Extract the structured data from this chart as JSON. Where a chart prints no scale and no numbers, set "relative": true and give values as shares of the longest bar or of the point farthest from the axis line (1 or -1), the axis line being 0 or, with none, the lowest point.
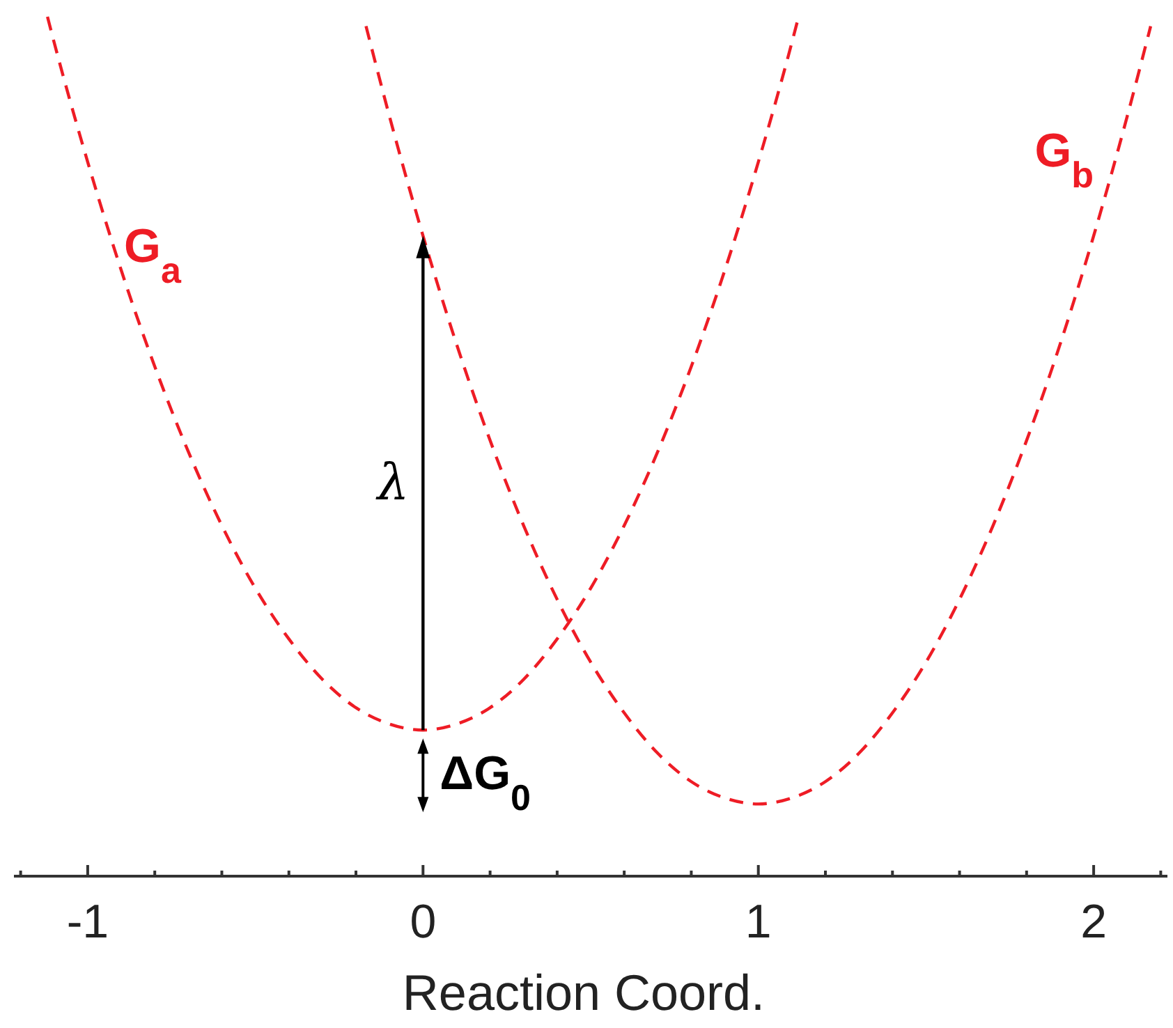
{
  "chart_data": {
    "type": "line",
    "relative": true,
    "xlabel": "Reaction Coord.",
    "xlim": [
      -1.22,
      2.22
    ],
    "xticks": [
      {
        "value": -1.2,
        "label": null
      },
      -1,
      {
        "value": -0.8,
        "label": null
      },
      {
        "value": -0.6,
        "label": null
      },
      {
        "value": -0.4,
        "label": null
      },
      {
        "value": -0.2,
        "label": null
      },
      0,
      {
        "value": 0.2,
        "label": null
      },
      {
        "value": 0.4,
        "label": null
      },
      {
        "value": 0.6,
        "label": null
      },
      {
        "value": 0.8,
        "label": null
      },
      1,
      {
        "value": 1.2,
        "label": null
      },
      {
        "value": 1.4,
        "label": null
      },
      {
        "value": 1.6,
        "label": null
      },
      {
        "value": 1.8,
        "label": null
      },
      2,
      {
        "value": 2.2,
        "label": null
      }
    ],
    "line_style": "dashed",
    "marker": "none",
    "grid": false,
    "legend": false,
    "series": [
      {
        "name": "G$_{a}$",
        "color": "#ee1c25",
        "x": [
          -1.12,
          -1.1,
          -1.0,
          -0.9,
          -0.8,
          -0.7,
          -0.6,
          -0.5,
          -0.4,
          -0.3,
          -0.2,
          -0.1,
          0,
          0.1,
          0.2,
          0.3,
          0.4,
          0.5,
          0.6,
          0.7,
          0.8,
          0.9,
          1.0,
          1.1,
          1.12
        ],
        "values": [
          1.0,
          0.97,
          0.831,
          0.705,
          0.593,
          0.494,
          0.408,
          0.335,
          0.276,
          0.229,
          0.196,
          0.177,
          0.17,
          0.177,
          0.196,
          0.229,
          0.276,
          0.335,
          0.408,
          0.494,
          0.593,
          0.705,
          0.831,
          0.97,
          1.0
        ]
      },
      {
        "name": "G$_{b}$",
        "color": "#ee1c25",
        "x": [
          -0.17,
          -0.1,
          0,
          0.1,
          0.2,
          0.3,
          0.4,
          0.5,
          0.6,
          0.7,
          0.8,
          0.9,
          1.0,
          1.1,
          1.2,
          1.3,
          1.4,
          1.5,
          1.6,
          1.7,
          1.8,
          1.9,
          2.0,
          2.1,
          2.17
        ],
        "values": [
          0.989,
          0.884,
          0.745,
          0.619,
          0.507,
          0.408,
          0.322,
          0.249,
          0.19,
          0.143,
          0.11,
          0.091,
          0.084,
          0.091,
          0.11,
          0.143,
          0.19,
          0.249,
          0.322,
          0.408,
          0.507,
          0.619,
          0.745,
          0.884,
          0.989
        ]
      }
    ],
    "annotations": [
      "λ",
      "ΔG$_{0}$"
    ]
  }
}
